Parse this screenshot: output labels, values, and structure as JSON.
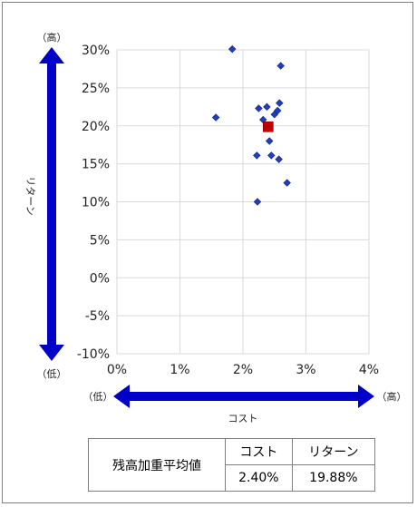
{
  "chart_data": {
    "type": "scatter",
    "title": "",
    "xlabel": "コスト",
    "ylabel": "リターン",
    "x_ticks": [
      "0%",
      "1%",
      "2%",
      "3%",
      "4%"
    ],
    "y_ticks": [
      "30%",
      "25%",
      "20%",
      "15%",
      "10%",
      "5%",
      "0%",
      "-5%",
      "-10%"
    ],
    "xlim": [
      0,
      4
    ],
    "ylim": [
      -10,
      30
    ],
    "grid": true,
    "high_label": "（高）",
    "low_label": "（低）",
    "series": [
      {
        "marker": "diamond",
        "color": "#1f3fbf",
        "points": [
          {
            "x": 1.83,
            "y": 30.1
          },
          {
            "x": 2.6,
            "y": 27.9
          },
          {
            "x": 2.25,
            "y": 22.3
          },
          {
            "x": 2.38,
            "y": 22.5
          },
          {
            "x": 2.58,
            "y": 23.0
          },
          {
            "x": 2.55,
            "y": 22.0
          },
          {
            "x": 2.5,
            "y": 21.5
          },
          {
            "x": 1.57,
            "y": 21.1
          },
          {
            "x": 2.32,
            "y": 20.8
          },
          {
            "x": 2.42,
            "y": 18.0
          },
          {
            "x": 2.22,
            "y": 16.1
          },
          {
            "x": 2.45,
            "y": 16.1
          },
          {
            "x": 2.57,
            "y": 15.6
          },
          {
            "x": 2.7,
            "y": 12.5
          },
          {
            "x": 2.23,
            "y": 10.0
          }
        ]
      },
      {
        "marker": "square",
        "color": "#c00000",
        "points": [
          {
            "x": 2.4,
            "y": 19.88
          }
        ]
      }
    ]
  },
  "arrow_color": "#0000c8",
  "summary": {
    "row_label": "残高加重平均値",
    "col_cost": "コスト",
    "col_return": "リターン",
    "cost_value": "2.40%",
    "return_value": "19.88%"
  }
}
